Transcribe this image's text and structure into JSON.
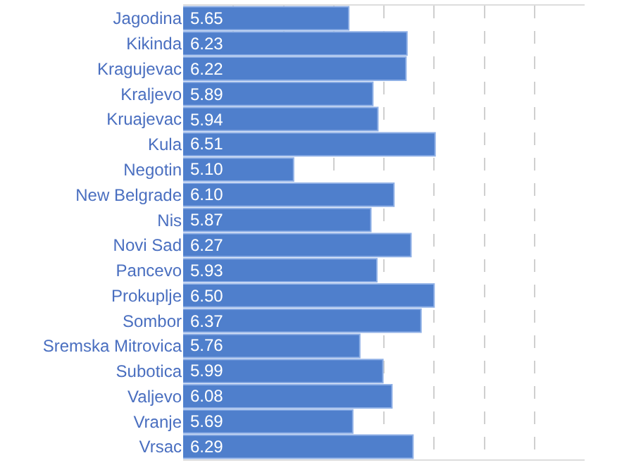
{
  "chart_data": {
    "type": "bar",
    "orientation": "horizontal",
    "categories": [
      "Jagodina",
      "Kikinda",
      "Kragujevac",
      "Kraljevo",
      "Kruajevac",
      "Kula",
      "Negotin",
      "New Belgrade",
      "Nis",
      "Novi Sad",
      "Pancevo",
      "Prokuplje",
      "Sombor",
      "Sremska Mitrovica",
      "Subotica",
      "Valjevo",
      "Vranje",
      "Vrsac"
    ],
    "values": [
      5.65,
      6.23,
      6.22,
      5.89,
      5.94,
      6.51,
      5.1,
      6.1,
      5.87,
      6.27,
      5.93,
      6.5,
      6.37,
      5.76,
      5.99,
      6.08,
      5.69,
      6.29
    ],
    "color": "#4f7fcc",
    "xlim": [
      4,
      8
    ],
    "value_labels": [
      "5.65",
      "6.23",
      "6.22",
      "5.89",
      "5.94",
      "6.51",
      "5.10",
      "6.10",
      "5.87",
      "6.27",
      "5.93",
      "6.50",
      "6.37",
      "5.76",
      "5.99",
      "6.08",
      "5.69",
      "6.29"
    ],
    "grid": "x",
    "tick_labels": "y",
    "legend": false
  }
}
